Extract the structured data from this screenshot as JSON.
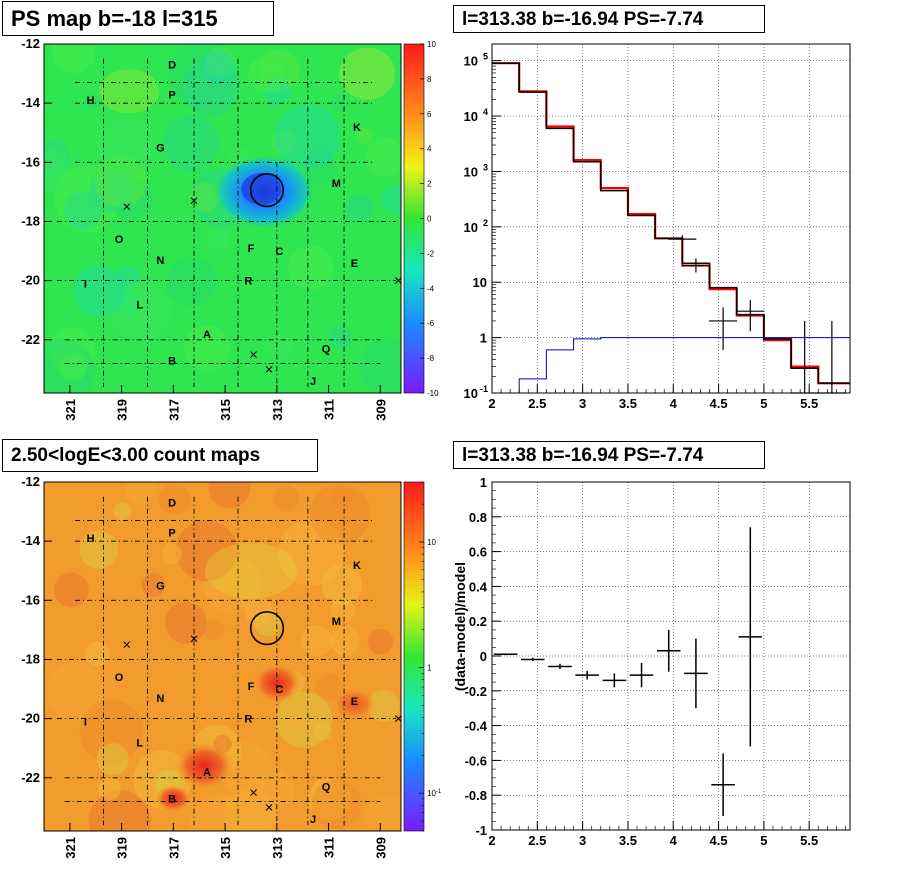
{
  "chart_data": [
    {
      "type": "heatmap",
      "title": "PS map b=-18 l=315",
      "xlim": [
        322,
        308.2
      ],
      "ylim": [
        -23.8,
        -12
      ],
      "x_ticks": [
        "321",
        "319",
        "317",
        "315",
        "313",
        "311",
        "309"
      ],
      "y_ticks": [
        "-12",
        "-14",
        "-16",
        "-18",
        "-20",
        "-22"
      ],
      "colorbar": {
        "range": [
          -10,
          10
        ],
        "scale": "linear",
        "ticks": [
          "10",
          "8",
          "6",
          "4",
          "2",
          "0",
          "-2",
          "-4",
          "-6",
          "-8",
          "-10"
        ]
      },
      "region_labels": [
        {
          "text": "D",
          "l": 317.05,
          "b": -12.7
        },
        {
          "text": "H",
          "l": 320.2,
          "b": -13.9
        },
        {
          "text": "P",
          "l": 317.05,
          "b": -13.7
        },
        {
          "text": "G",
          "l": 317.5,
          "b": -15.5
        },
        {
          "text": "K",
          "l": 309.9,
          "b": -14.8
        },
        {
          "text": "M",
          "l": 310.7,
          "b": -16.7
        },
        {
          "text": "O",
          "l": 319.1,
          "b": -18.6
        },
        {
          "text": "N",
          "l": 317.5,
          "b": -19.3
        },
        {
          "text": "F",
          "l": 314.0,
          "b": -18.9
        },
        {
          "text": "C",
          "l": 312.9,
          "b": -19.0
        },
        {
          "text": "E",
          "l": 310.0,
          "b": -19.4
        },
        {
          "text": "R",
          "l": 314.1,
          "b": -20.0
        },
        {
          "text": "I",
          "l": 320.4,
          "b": -20.1
        },
        {
          "text": "L",
          "l": 318.3,
          "b": -20.8
        },
        {
          "text": "A",
          "l": 315.7,
          "b": -21.8
        },
        {
          "text": "Q",
          "l": 311.1,
          "b": -22.3
        },
        {
          "text": "B",
          "l": 317.05,
          "b": -22.7
        },
        {
          "text": "J",
          "l": 311.6,
          "b": -23.4
        }
      ],
      "crosses": [
        [
          318.8,
          -17.5
        ],
        [
          316.2,
          -17.3
        ],
        [
          313.9,
          -22.5
        ],
        [
          313.3,
          -23.0
        ],
        [
          308.3,
          -20.0
        ]
      ],
      "circle": {
        "l": 313.38,
        "b": -16.94,
        "r": 0.6
      },
      "colors": {
        "field": "#2fe650",
        "hotspot": "#1a8cff",
        "hotspot_core": "#1f3ee0"
      }
    },
    {
      "type": "line",
      "title": "l=313.38 b=-16.94 PS=-7.74",
      "xlim": [
        2,
        5.95
      ],
      "ylim": [
        0.1,
        200000
      ],
      "yscale": "log",
      "x_ticks": [
        "2",
        "2.5",
        "3",
        "3.5",
        "4",
        "4.5",
        "5",
        "5.5"
      ],
      "y_ticks": [
        "10",
        "1",
        "10"
      ],
      "y_exponents": [
        "5",
        "4",
        "3",
        "2",
        "-1"
      ],
      "bin_edges": [
        2,
        2.3,
        2.6,
        2.9,
        3.2,
        3.5,
        3.8,
        4.1,
        4.4,
        4.7,
        5.0,
        5.3,
        5.6,
        5.95
      ],
      "series": [
        {
          "name": "",
          "color": "#ff0000",
          "style": "step",
          "values": [
            90000,
            28000,
            6500,
            1600,
            500,
            170,
            62,
            20,
            7.5,
            2.5,
            0.9,
            0.3,
            0.15
          ]
        },
        {
          "name": "",
          "color": "#000000",
          "style": "step",
          "values": [
            90000,
            27000,
            6000,
            1500,
            450,
            160,
            62,
            22,
            8,
            2.6,
            0.95,
            0.28,
            0.15
          ]
        },
        {
          "name": "",
          "color": "#0000cc",
          "style": "step",
          "values": [
            0.1,
            0.18,
            0.6,
            0.95,
            1,
            1,
            1,
            1,
            1,
            1,
            1,
            1,
            1
          ]
        }
      ],
      "data_points": [
        {
          "x": 4.1,
          "y": 60,
          "lo": 55,
          "hi": 70
        },
        {
          "x": 4.25,
          "y": 20,
          "lo": 15,
          "hi": 27
        },
        {
          "x": 4.55,
          "y": 2,
          "lo": 0.6,
          "hi": 3.5
        },
        {
          "x": 4.85,
          "y": 3,
          "lo": 1.3,
          "hi": 4.8
        },
        {
          "x": 5.45,
          "y": 0.1,
          "lo": 0.1,
          "hi": 2
        },
        {
          "x": 5.75,
          "y": 0.1,
          "lo": 0.1,
          "hi": 2
        }
      ],
      "grid": true
    },
    {
      "type": "heatmap",
      "title": "2.50<logE<3.00 count maps",
      "xlim": [
        322,
        308.2
      ],
      "ylim": [
        -23.8,
        -12
      ],
      "x_ticks": [
        "321",
        "319",
        "317",
        "315",
        "313",
        "311",
        "309"
      ],
      "y_ticks": [
        "-12",
        "-14",
        "-16",
        "-18",
        "-20",
        "-22"
      ],
      "colorbar": {
        "range": [
          0.05,
          30
        ],
        "scale": "log",
        "ticks": [
          "10",
          "1"
        ],
        "tick_bases": [
          "10"
        ],
        "tick_exponents": [
          "-1"
        ]
      },
      "colors": {
        "field": "#f29c2e",
        "hot": "#e8261c"
      }
    },
    {
      "type": "scatter",
      "title": "l=313.38 b=-16.94 PS=-7.74",
      "xlabel": "",
      "ylabel": "(data-model)/model",
      "xlim": [
        2,
        5.95
      ],
      "ylim": [
        -1,
        1
      ],
      "x_ticks": [
        "2",
        "2.5",
        "3",
        "3.5",
        "4",
        "4.5",
        "5",
        "5.5"
      ],
      "y_ticks": [
        "1",
        "0.8",
        "0.6",
        "0.4",
        "0.2",
        "0",
        "-0.2",
        "-0.4",
        "-0.6",
        "-0.8",
        "-1"
      ],
      "points": [
        {
          "x": 2.15,
          "y": 0.01,
          "yerr": 0.005,
          "xerr": 0.15
        },
        {
          "x": 2.45,
          "y": -0.02,
          "yerr": 0.01,
          "xerr": 0.15
        },
        {
          "x": 2.75,
          "y": -0.06,
          "yerr": 0.015,
          "xerr": 0.15
        },
        {
          "x": 3.05,
          "y": -0.11,
          "yerr": 0.025,
          "xerr": 0.15
        },
        {
          "x": 3.35,
          "y": -0.14,
          "yerr": 0.04,
          "xerr": 0.15
        },
        {
          "x": 3.65,
          "y": -0.11,
          "yerr": 0.07,
          "xerr": 0.15
        },
        {
          "x": 3.95,
          "y": 0.03,
          "yerr": 0.12,
          "xerr": 0.15
        },
        {
          "x": 4.25,
          "y": -0.1,
          "yerr": 0.2,
          "xerr": 0.15
        },
        {
          "x": 4.55,
          "y": -0.74,
          "yerr": 0.18,
          "xerr": 0.15
        },
        {
          "x": 4.85,
          "y": 0.11,
          "yerr": 0.63,
          "xerr": 0.15
        }
      ],
      "grid": true
    }
  ]
}
